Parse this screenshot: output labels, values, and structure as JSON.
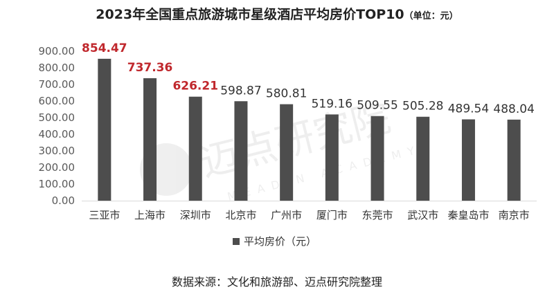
{
  "header": {
    "title": "2023年全国重点旅游城市星级酒店平均房价TOP10",
    "unit": "（单位：元）"
  },
  "watermark": {
    "text": "迈点研究院",
    "subtext": "MEADIN ACADEMY"
  },
  "footer": {
    "source": "数据来源：文化和旅游部、迈点研究院整理"
  },
  "colors": {
    "bar": "#4d4d4d",
    "highlight_label": "#c0282d",
    "normal_label": "#333333",
    "axis_text": "#595959",
    "grid": "#d9d9d9"
  },
  "chart_data": {
    "type": "bar",
    "categories": [
      "三亚市",
      "上海市",
      "深圳市",
      "北京市",
      "广州市",
      "厦门市",
      "东莞市",
      "武汉市",
      "秦皇岛市",
      "南京市"
    ],
    "series": [
      {
        "name": "平均房价（元）",
        "values": [
          854.47,
          737.36,
          626.21,
          598.87,
          580.81,
          519.16,
          509.55,
          505.28,
          489.54,
          488.04
        ],
        "value_labels": [
          "854.47",
          "737.36",
          "626.21",
          "598.87",
          "580.81",
          "519.16",
          "509.55",
          "505.28",
          "489.54",
          "488.04"
        ]
      }
    ],
    "highlight_top": 3,
    "ylim": [
      0,
      900
    ],
    "yticks": [
      "0.00",
      "100.00",
      "200.00",
      "300.00",
      "400.00",
      "500.00",
      "600.00",
      "700.00",
      "800.00",
      "900.00"
    ],
    "legend": {
      "position": "bottom"
    },
    "grid": false
  }
}
